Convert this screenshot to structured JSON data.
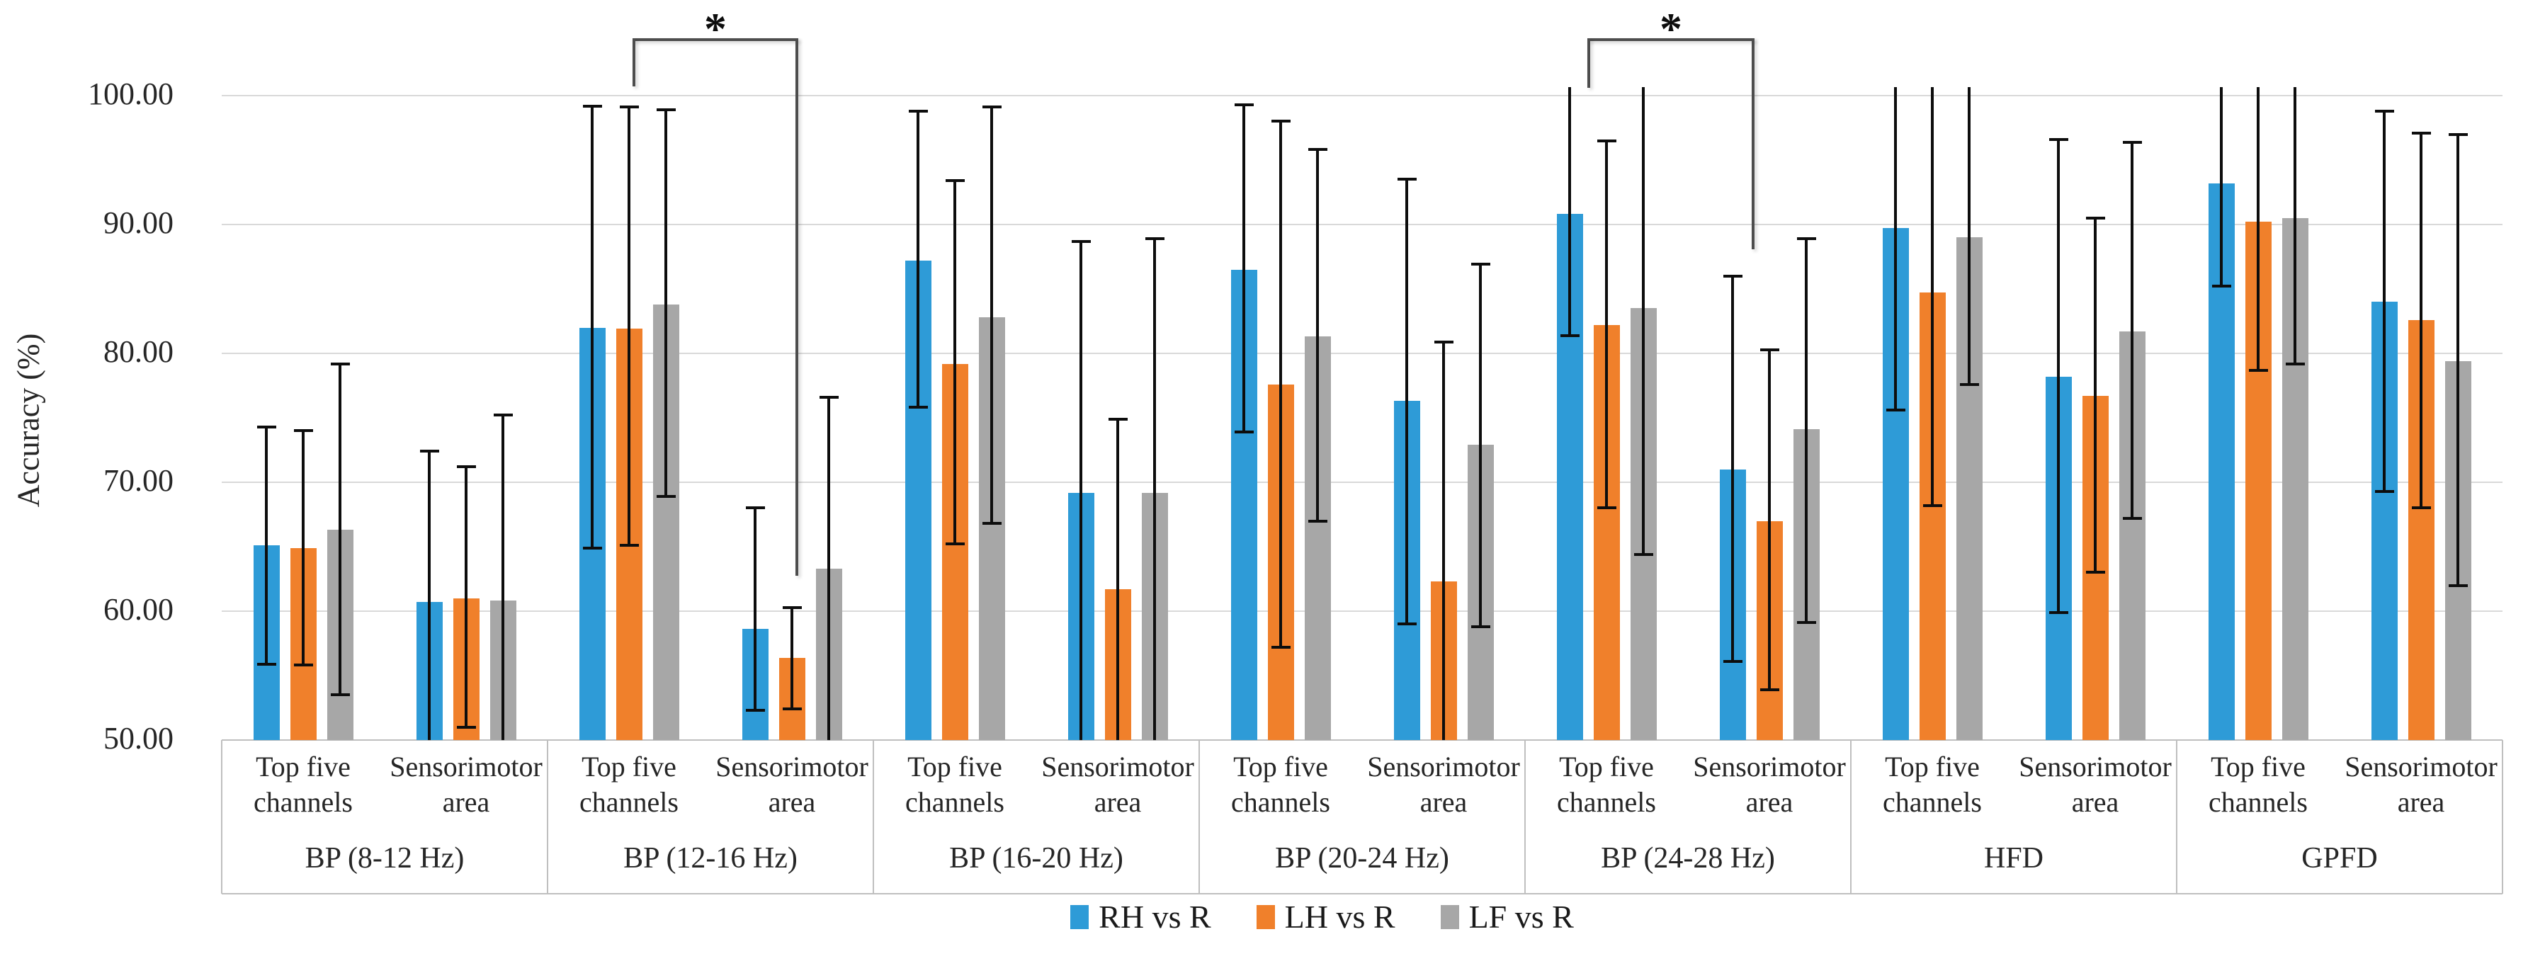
{
  "chart_data": {
    "type": "bar",
    "title": "",
    "ylabel": "Accuracy (%)",
    "ylim": [
      50,
      100
    ],
    "ytick_step": 10,
    "ytick_labels": [
      "50.00",
      "60.00",
      "70.00",
      "80.00",
      "90.00",
      "100.00"
    ],
    "grid": "horizontal",
    "legend_position": "bottom-center",
    "error_bars": true,
    "clip_note": "err_low below 50 or err_high above 100 means whisker is clipped at plot edge (no cap drawn)",
    "series": [
      {
        "name": "RH vs R",
        "color": "#2E9BD7"
      },
      {
        "name": "LH vs R",
        "color": "#F0802B"
      },
      {
        "name": "LF vs R",
        "color": "#A7A7A7"
      }
    ],
    "subgroup_labels": [
      "Top five channels",
      "Sensorimotor area"
    ],
    "groups": [
      {
        "label": "BP (8-12 Hz)",
        "subgroups": [
          {
            "label": "Top five channels",
            "bars": [
              {
                "series": "RH vs R",
                "value": 65.1,
                "err_low": 55.9,
                "err_high": 74.3
              },
              {
                "series": "LH vs R",
                "value": 64.9,
                "err_low": 55.8,
                "err_high": 74.0
              },
              {
                "series": "LF vs R",
                "value": 66.3,
                "err_low": 53.5,
                "err_high": 79.2
              }
            ]
          },
          {
            "label": "Sensorimotor area",
            "bars": [
              {
                "series": "RH vs R",
                "value": 60.7,
                "err_low": 48.5,
                "err_high": 72.4
              },
              {
                "series": "LH vs R",
                "value": 61.0,
                "err_low": 51.0,
                "err_high": 71.2
              },
              {
                "series": "LF vs R",
                "value": 60.8,
                "err_low": 48.5,
                "err_high": 75.2
              }
            ]
          }
        ]
      },
      {
        "label": "BP (12-16 Hz)",
        "subgroups": [
          {
            "label": "Top five channels",
            "bars": [
              {
                "series": "RH vs R",
                "value": 82.0,
                "err_low": 64.9,
                "err_high": 99.2
              },
              {
                "series": "LH vs R",
                "value": 81.9,
                "err_low": 65.1,
                "err_high": 99.1
              },
              {
                "series": "LF vs R",
                "value": 83.8,
                "err_low": 68.9,
                "err_high": 98.9
              }
            ]
          },
          {
            "label": "Sensorimotor area",
            "bars": [
              {
                "series": "RH vs R",
                "value": 58.6,
                "err_low": 52.3,
                "err_high": 68.0
              },
              {
                "series": "LH vs R",
                "value": 56.4,
                "err_low": 52.4,
                "err_high": 60.3
              },
              {
                "series": "LF vs R",
                "value": 63.3,
                "err_low": 48.5,
                "err_high": 76.6
              }
            ]
          }
        ]
      },
      {
        "label": "BP (16-20 Hz)",
        "subgroups": [
          {
            "label": "Top five channels",
            "bars": [
              {
                "series": "RH vs R",
                "value": 87.2,
                "err_low": 75.8,
                "err_high": 98.8
              },
              {
                "series": "LH vs R",
                "value": 79.2,
                "err_low": 65.2,
                "err_high": 93.4
              },
              {
                "series": "LF vs R",
                "value": 82.8,
                "err_low": 66.8,
                "err_high": 99.1
              }
            ]
          },
          {
            "label": "Sensorimotor area",
            "bars": [
              {
                "series": "RH vs R",
                "value": 69.2,
                "err_low": 48.5,
                "err_high": 88.7
              },
              {
                "series": "LH vs R",
                "value": 61.7,
                "err_low": 48.5,
                "err_high": 74.9
              },
              {
                "series": "LF vs R",
                "value": 69.2,
                "err_low": 48.5,
                "err_high": 88.9
              }
            ]
          }
        ]
      },
      {
        "label": "BP (20-24 Hz)",
        "subgroups": [
          {
            "label": "Top five channels",
            "bars": [
              {
                "series": "RH vs R",
                "value": 86.5,
                "err_low": 73.9,
                "err_high": 99.3
              },
              {
                "series": "LH vs R",
                "value": 77.6,
                "err_low": 57.2,
                "err_high": 98.0
              },
              {
                "series": "LF vs R",
                "value": 81.3,
                "err_low": 67.0,
                "err_high": 95.8
              }
            ]
          },
          {
            "label": "Sensorimotor area",
            "bars": [
              {
                "series": "RH vs R",
                "value": 76.3,
                "err_low": 59.0,
                "err_high": 93.5
              },
              {
                "series": "LH vs R",
                "value": 62.3,
                "err_low": 48.5,
                "err_high": 80.9
              },
              {
                "series": "LF vs R",
                "value": 72.9,
                "err_low": 58.8,
                "err_high": 86.9
              }
            ]
          }
        ]
      },
      {
        "label": "BP (24-28 Hz)",
        "subgroups": [
          {
            "label": "Top five channels",
            "bars": [
              {
                "series": "RH vs R",
                "value": 90.8,
                "err_low": 81.4,
                "err_high": 101
              },
              {
                "series": "LH vs R",
                "value": 82.2,
                "err_low": 68.0,
                "err_high": 96.5
              },
              {
                "series": "LF vs R",
                "value": 83.5,
                "err_low": 64.4,
                "err_high": 101
              }
            ]
          },
          {
            "label": "Sensorimotor area",
            "bars": [
              {
                "series": "RH vs R",
                "value": 71.0,
                "err_low": 56.1,
                "err_high": 86.0
              },
              {
                "series": "LH vs R",
                "value": 67.0,
                "err_low": 53.9,
                "err_high": 80.3
              },
              {
                "series": "LF vs R",
                "value": 74.1,
                "err_low": 59.1,
                "err_high": 88.9
              }
            ]
          }
        ]
      },
      {
        "label": "HFD",
        "subgroups": [
          {
            "label": "Top five channels",
            "bars": [
              {
                "series": "RH vs R",
                "value": 89.7,
                "err_low": 75.6,
                "err_high": 101
              },
              {
                "series": "LH vs R",
                "value": 84.7,
                "err_low": 68.2,
                "err_high": 101
              },
              {
                "series": "LF vs R",
                "value": 89.0,
                "err_low": 77.6,
                "err_high": 101
              }
            ]
          },
          {
            "label": "Sensorimotor area",
            "bars": [
              {
                "series": "RH vs R",
                "value": 78.2,
                "err_low": 59.9,
                "err_high": 96.6
              },
              {
                "series": "LH vs R",
                "value": 76.7,
                "err_low": 63.0,
                "err_high": 90.5
              },
              {
                "series": "LF vs R",
                "value": 81.7,
                "err_low": 67.2,
                "err_high": 96.4
              }
            ]
          }
        ]
      },
      {
        "label": "GPFD",
        "subgroups": [
          {
            "label": "Top five channels",
            "bars": [
              {
                "series": "RH vs R",
                "value": 93.2,
                "err_low": 85.2,
                "err_high": 101
              },
              {
                "series": "LH vs R",
                "value": 90.2,
                "err_low": 78.7,
                "err_high": 101
              },
              {
                "series": "LF vs R",
                "value": 90.5,
                "err_low": 79.2,
                "err_high": 101
              }
            ]
          },
          {
            "label": "Sensorimotor area",
            "bars": [
              {
                "series": "RH vs R",
                "value": 84.0,
                "err_low": 69.3,
                "err_high": 98.8
              },
              {
                "series": "LH vs R",
                "value": 82.6,
                "err_low": 68.0,
                "err_high": 97.1
              },
              {
                "series": "LF vs R",
                "value": 79.4,
                "err_low": 62.0,
                "err_high": 97.0
              }
            ]
          }
        ]
      }
    ],
    "significance": [
      {
        "symbol": "*",
        "group": "BP (12-16 Hz)",
        "from_subgroup": "Top five channels",
        "to_subgroup": "Sensorimotor area"
      },
      {
        "symbol": "*",
        "group": "BP (24-28 Hz)",
        "from_subgroup": "Top five channels",
        "to_subgroup": "Sensorimotor area"
      }
    ],
    "colors": {
      "gridline": "#d9d9d9",
      "axis": "#bfbfbf",
      "error_bar": "#0d0d0d",
      "bracket": "#4d4d4d",
      "text": "#262626"
    }
  }
}
